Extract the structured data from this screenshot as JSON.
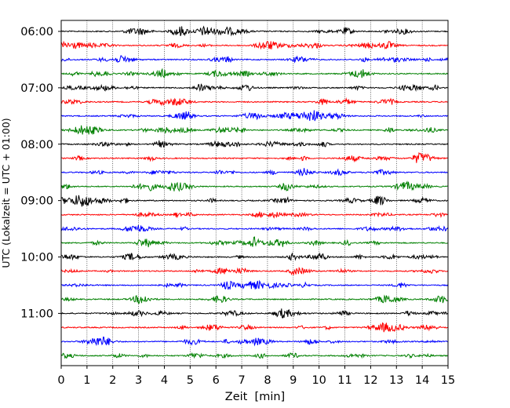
{
  "chart_data": {
    "type": "line",
    "title": "",
    "xlabel": "Zeit  [min]",
    "ylabel": "UTC (Lokalzeit = UTC + 01:00)",
    "xlim": [
      0,
      15
    ],
    "x_ticks": [
      "0",
      "1",
      "2",
      "3",
      "4",
      "5",
      "6",
      "7",
      "8",
      "9",
      "10",
      "11",
      "12",
      "13",
      "14",
      "15"
    ],
    "y_ticks": [
      "06:00",
      "07:00",
      "08:00",
      "09:00",
      "10:00",
      "11:00"
    ],
    "grid": "vertical dotted at each minute",
    "legend": "none",
    "trace_interval_minutes": 15,
    "colors_cycle": [
      "#000000",
      "#ff0000",
      "#0000ff",
      "#008000"
    ],
    "traces": [
      {
        "start": "06:00",
        "color": "#000000"
      },
      {
        "start": "06:15",
        "color": "#ff0000"
      },
      {
        "start": "06:30",
        "color": "#0000ff"
      },
      {
        "start": "06:45",
        "color": "#008000"
      },
      {
        "start": "07:00",
        "color": "#000000"
      },
      {
        "start": "07:15",
        "color": "#ff0000"
      },
      {
        "start": "07:30",
        "color": "#0000ff"
      },
      {
        "start": "07:45",
        "color": "#008000"
      },
      {
        "start": "08:00",
        "color": "#000000"
      },
      {
        "start": "08:15",
        "color": "#ff0000"
      },
      {
        "start": "08:30",
        "color": "#0000ff"
      },
      {
        "start": "08:45",
        "color": "#008000"
      },
      {
        "start": "09:00",
        "color": "#000000"
      },
      {
        "start": "09:15",
        "color": "#ff0000"
      },
      {
        "start": "09:30",
        "color": "#0000ff"
      },
      {
        "start": "09:45",
        "color": "#008000"
      },
      {
        "start": "10:00",
        "color": "#000000"
      },
      {
        "start": "10:15",
        "color": "#ff0000"
      },
      {
        "start": "10:30",
        "color": "#0000ff"
      },
      {
        "start": "10:45",
        "color": "#008000"
      },
      {
        "start": "11:00",
        "color": "#000000"
      },
      {
        "start": "11:15",
        "color": "#ff0000"
      },
      {
        "start": "11:30",
        "color": "#0000ff"
      },
      {
        "start": "11:45",
        "color": "#008000"
      }
    ]
  }
}
